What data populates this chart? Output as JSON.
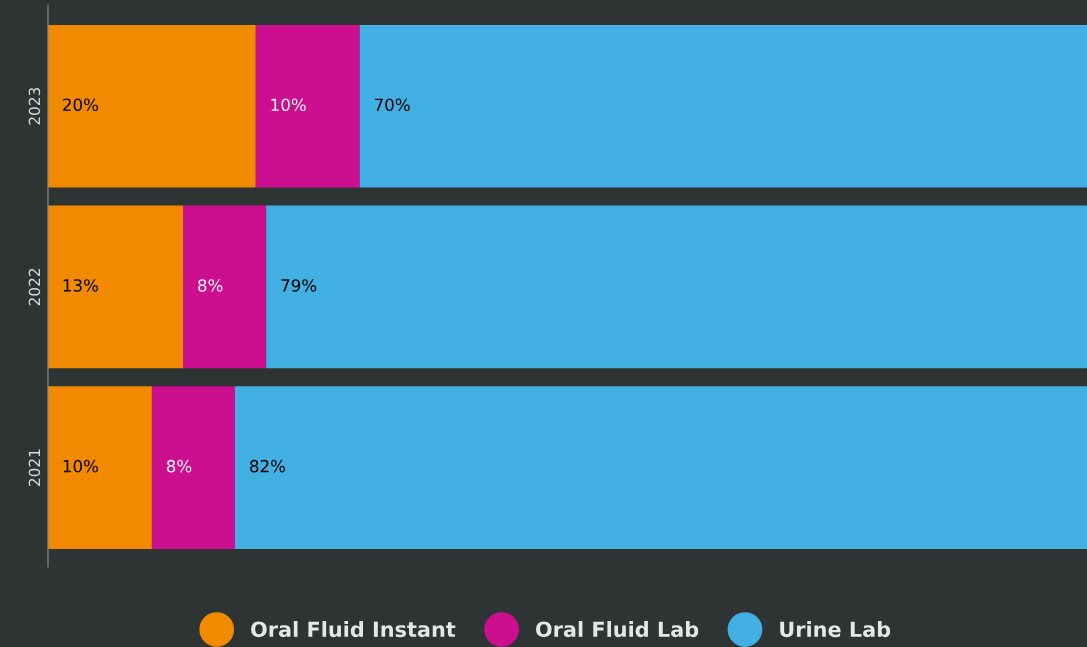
{
  "chart_data": {
    "type": "bar",
    "orientation": "horizontal",
    "stacked": true,
    "categories": [
      "2023",
      "2022",
      "2021"
    ],
    "series": [
      {
        "name": "Oral Fluid Instant",
        "color": "#f28a00",
        "values": [
          20,
          13,
          10
        ],
        "value_labels": [
          "20%",
          "13%",
          "10%"
        ]
      },
      {
        "name": "Oral Fluid Lab",
        "color": "#cc0f8e",
        "values": [
          10,
          8,
          8
        ],
        "value_labels": [
          "10%",
          "8%",
          "8%"
        ]
      },
      {
        "name": "Urine Lab",
        "color": "#42b0e3",
        "values": [
          70,
          79,
          82
        ],
        "value_labels": [
          "70%",
          "79%",
          "82%"
        ]
      }
    ],
    "legend": "bottom",
    "grid": false,
    "tick_labels": "y"
  }
}
